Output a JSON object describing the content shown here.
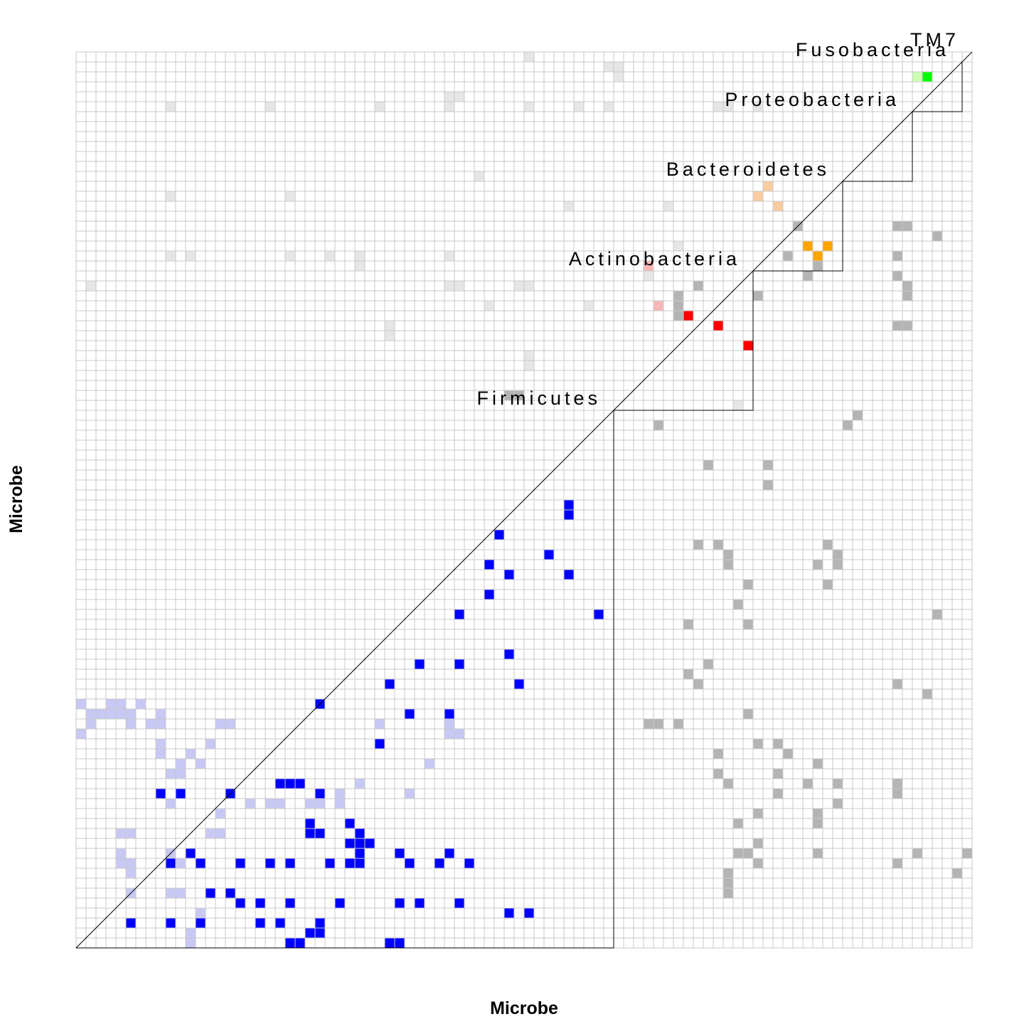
{
  "chart_data": {
    "type": "heatmap",
    "title": "",
    "xlabel": "Microbe",
    "ylabel": "Microbe",
    "grid": true,
    "n": 90,
    "colors": {
      "gridline": "#c8c8c8",
      "background": "#ffffff",
      "outline": "#000000",
      "Firmicutes": {
        "strong": "#0000ff",
        "weak": "#c8c8f5"
      },
      "Actinobacteria": {
        "strong": "#ff0000",
        "weak": "#f7b7b7"
      },
      "Bacteroidetes": {
        "strong": "#ffa500",
        "weak": "#f9cca0"
      },
      "Proteobacteria": {
        "strong": "#ff0000",
        "weak": "#f7b7b7"
      },
      "Fusobacteria": {
        "strong": "#00ff00",
        "weak": "#ccffb3"
      },
      "between_groups": {
        "strong": "#b4b4b4",
        "weak": "#e6e6e6"
      }
    },
    "groups": [
      {
        "name": "Firmicutes",
        "start": 0,
        "end": 54
      },
      {
        "name": "Actinobacteria",
        "start": 54,
        "end": 68
      },
      {
        "name": "Bacteroidetes",
        "start": 68,
        "end": 77
      },
      {
        "name": "Proteobacteria",
        "start": 77,
        "end": 84
      },
      {
        "name": "Fusobacteria",
        "start": 84,
        "end": 89
      },
      {
        "name": "TM7",
        "start": 89,
        "end": 90
      }
    ],
    "cells": [
      {
        "group": "Firmicutes",
        "level": "strong",
        "points": [
          [
            49,
            44
          ],
          [
            49,
            43
          ],
          [
            42,
            41
          ],
          [
            47,
            39
          ],
          [
            41,
            38
          ],
          [
            43,
            37
          ],
          [
            49,
            37
          ],
          [
            41,
            35
          ],
          [
            38,
            33
          ],
          [
            52,
            33
          ],
          [
            43,
            29
          ],
          [
            34,
            28
          ],
          [
            38,
            28
          ],
          [
            31,
            26
          ],
          [
            44,
            26
          ],
          [
            24,
            24
          ],
          [
            33,
            23
          ],
          [
            37,
            23
          ],
          [
            30,
            20
          ],
          [
            20,
            16
          ],
          [
            22,
            16
          ],
          [
            21,
            16
          ],
          [
            8,
            15
          ],
          [
            10,
            15
          ],
          [
            15,
            15
          ],
          [
            24,
            15
          ],
          [
            23,
            12
          ],
          [
            27,
            12
          ],
          [
            23,
            11
          ],
          [
            24,
            11
          ],
          [
            28,
            11
          ],
          [
            27,
            10
          ],
          [
            28,
            10
          ],
          [
            29,
            10
          ],
          [
            28,
            9
          ],
          [
            32,
            9
          ],
          [
            37,
            9
          ],
          [
            11,
            9
          ],
          [
            9,
            8
          ],
          [
            10,
            8
          ],
          [
            12,
            8
          ],
          [
            16,
            8
          ],
          [
            19,
            8
          ],
          [
            21,
            8
          ],
          [
            25,
            8
          ],
          [
            27,
            8
          ],
          [
            28,
            8
          ],
          [
            33,
            8
          ],
          [
            36,
            8
          ],
          [
            39,
            8
          ],
          [
            13,
            5
          ],
          [
            15,
            5
          ],
          [
            16,
            4
          ],
          [
            18,
            4
          ],
          [
            21,
            4
          ],
          [
            26,
            4
          ],
          [
            32,
            4
          ],
          [
            34,
            4
          ],
          [
            38,
            4
          ],
          [
            43,
            3
          ],
          [
            45,
            3
          ],
          [
            5,
            2
          ],
          [
            9,
            2
          ],
          [
            12,
            2
          ],
          [
            18,
            2
          ],
          [
            20,
            2
          ],
          [
            24,
            2
          ],
          [
            23,
            1
          ],
          [
            24,
            1
          ],
          [
            21,
            0
          ],
          [
            22,
            0
          ],
          [
            31,
            0
          ],
          [
            32,
            0
          ]
        ]
      },
      {
        "group": "Firmicutes",
        "level": "weak",
        "points": [
          [
            0,
            24
          ],
          [
            0,
            21
          ],
          [
            1,
            23
          ],
          [
            1,
            22
          ],
          [
            2,
            23
          ],
          [
            3,
            24
          ],
          [
            3,
            23
          ],
          [
            4,
            24
          ],
          [
            4,
            23
          ],
          [
            5,
            23
          ],
          [
            5,
            22
          ],
          [
            6,
            24
          ],
          [
            7,
            22
          ],
          [
            8,
            22
          ],
          [
            8,
            23
          ],
          [
            8,
            20
          ],
          [
            8,
            19
          ],
          [
            9,
            14
          ],
          [
            9,
            17
          ],
          [
            10,
            17
          ],
          [
            10,
            18
          ],
          [
            11,
            19
          ],
          [
            12,
            18
          ],
          [
            13,
            20
          ],
          [
            13,
            11
          ],
          [
            14,
            13
          ],
          [
            14,
            11
          ],
          [
            14,
            22
          ],
          [
            15,
            22
          ],
          [
            12,
            3
          ],
          [
            17,
            14
          ],
          [
            19,
            14
          ],
          [
            20,
            14
          ],
          [
            23,
            14
          ],
          [
            24,
            14
          ],
          [
            26,
            14
          ],
          [
            26,
            15
          ],
          [
            28,
            16
          ],
          [
            30,
            22
          ],
          [
            33,
            15
          ],
          [
            35,
            18
          ],
          [
            37,
            22
          ],
          [
            37,
            21
          ],
          [
            38,
            21
          ],
          [
            4,
            8
          ],
          [
            5,
            8
          ],
          [
            5,
            7
          ],
          [
            4,
            9
          ],
          [
            4,
            11
          ],
          [
            5,
            11
          ],
          [
            9,
            9
          ],
          [
            10,
            8
          ],
          [
            9,
            5
          ],
          [
            10,
            5
          ],
          [
            11,
            1
          ],
          [
            11,
            0
          ],
          [
            5,
            5
          ]
        ]
      },
      {
        "group": "Actinobacteria",
        "level": "strong",
        "points": [
          [
            61,
            63
          ],
          [
            64,
            62
          ],
          [
            67,
            60
          ]
        ]
      },
      {
        "group": "Actinobacteria",
        "level": "weak",
        "points": [
          [
            57,
            68
          ],
          [
            58,
            64
          ],
          [
            60,
            65
          ]
        ]
      },
      {
        "group": "Bacteroidetes",
        "level": "strong",
        "points": [
          [
            73,
            70
          ],
          [
            74,
            69
          ],
          [
            75,
            70
          ]
        ]
      },
      {
        "group": "Bacteroidetes",
        "level": "weak",
        "points": [
          [
            68,
            75
          ],
          [
            69,
            76
          ],
          [
            70,
            74
          ]
        ]
      },
      {
        "group": "Fusobacteria",
        "level": "strong",
        "points": [
          [
            85,
            87
          ]
        ]
      },
      {
        "group": "Fusobacteria",
        "level": "weak",
        "points": [
          [
            84,
            87
          ]
        ]
      },
      {
        "group": "between_groups",
        "level": "strong",
        "points": [
          [
            82,
            72
          ],
          [
            83,
            72
          ],
          [
            82,
            67
          ],
          [
            82,
            69
          ],
          [
            86,
            71
          ],
          [
            72,
            72
          ],
          [
            71,
            69
          ],
          [
            74,
            68
          ],
          [
            83,
            66
          ],
          [
            83,
            65
          ],
          [
            73,
            67
          ],
          [
            62,
            66
          ],
          [
            83,
            62
          ],
          [
            68,
            65
          ],
          [
            60,
            65
          ],
          [
            82,
            62
          ],
          [
            60,
            63
          ],
          [
            60,
            64
          ],
          [
            44,
            55
          ],
          [
            43,
            55
          ],
          [
            78,
            53
          ],
          [
            77,
            52
          ],
          [
            58,
            52
          ],
          [
            63,
            48
          ],
          [
            69,
            48
          ],
          [
            69,
            46
          ],
          [
            62,
            40
          ],
          [
            65,
            39
          ],
          [
            64,
            40
          ],
          [
            65,
            38
          ],
          [
            75,
            40
          ],
          [
            76,
            39
          ],
          [
            76,
            38
          ],
          [
            74,
            38
          ],
          [
            75,
            36
          ],
          [
            67,
            36
          ],
          [
            66,
            34
          ],
          [
            86,
            33
          ],
          [
            67,
            32
          ],
          [
            61,
            32
          ],
          [
            82,
            26
          ],
          [
            85,
            25
          ],
          [
            63,
            28
          ],
          [
            62,
            26
          ],
          [
            61,
            27
          ],
          [
            68,
            20
          ],
          [
            70,
            20
          ],
          [
            71,
            19
          ],
          [
            74,
            18
          ],
          [
            70,
            17
          ],
          [
            65,
            16
          ],
          [
            70,
            15
          ],
          [
            73,
            16
          ],
          [
            76,
            14
          ],
          [
            74,
            13
          ],
          [
            74,
            12
          ],
          [
            60,
            22
          ],
          [
            68,
            8
          ],
          [
            68,
            10
          ],
          [
            74,
            9
          ],
          [
            82,
            8
          ],
          [
            84,
            9
          ],
          [
            89,
            9
          ],
          [
            67,
            9
          ],
          [
            66,
            9
          ],
          [
            65,
            5
          ],
          [
            65,
            6
          ],
          [
            65,
            7
          ],
          [
            88,
            7
          ],
          [
            68,
            13
          ],
          [
            66,
            12
          ],
          [
            82,
            16
          ],
          [
            82,
            15
          ],
          [
            76,
            16
          ],
          [
            57,
            22
          ],
          [
            58,
            22
          ],
          [
            64,
            19
          ],
          [
            64,
            17
          ],
          [
            67,
            23
          ]
        ]
      },
      {
        "group": "between_groups",
        "level": "weak",
        "points": [
          [
            45,
            89
          ],
          [
            53,
            88
          ],
          [
            54,
            88
          ],
          [
            54,
            87
          ],
          [
            38,
            85
          ],
          [
            50,
            84
          ],
          [
            53,
            84
          ],
          [
            45,
            84
          ],
          [
            37,
            84
          ],
          [
            19,
            84
          ],
          [
            37,
            85
          ],
          [
            64,
            84
          ],
          [
            65,
            84
          ],
          [
            68,
            84
          ],
          [
            9,
            84
          ],
          [
            30,
            84
          ],
          [
            40,
            77
          ],
          [
            9,
            75
          ],
          [
            21,
            75
          ],
          [
            49,
            74
          ],
          [
            59,
            74
          ],
          [
            9,
            69
          ],
          [
            11,
            69
          ],
          [
            21,
            69
          ],
          [
            25,
            69
          ],
          [
            28,
            69
          ],
          [
            37,
            69
          ],
          [
            28,
            68
          ],
          [
            1,
            66
          ],
          [
            44,
            66
          ],
          [
            37,
            66
          ],
          [
            38,
            66
          ],
          [
            45,
            66
          ],
          [
            51,
            64
          ],
          [
            57,
            67
          ],
          [
            41,
            64
          ],
          [
            31,
            62
          ],
          [
            31,
            61
          ],
          [
            45,
            59
          ],
          [
            45,
            58
          ],
          [
            60,
            70
          ],
          [
            66,
            54
          ]
        ]
      }
    ]
  }
}
